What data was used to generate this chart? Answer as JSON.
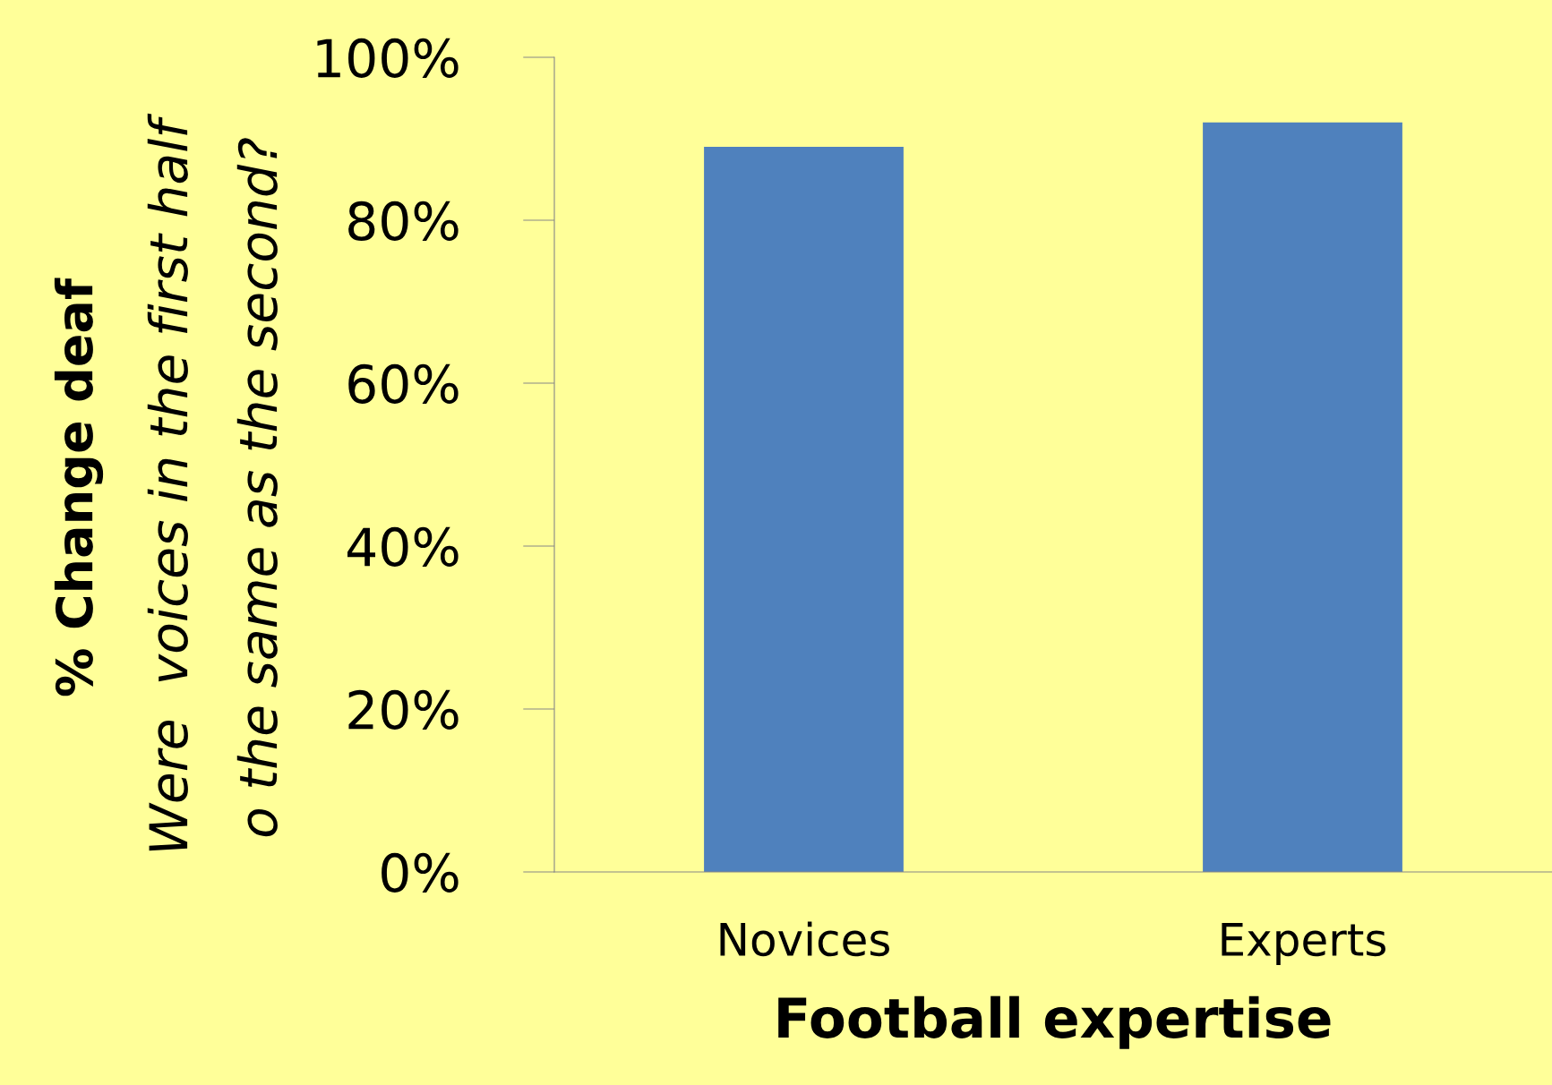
{
  "chart_data": {
    "type": "bar",
    "categories": [
      "Novices",
      "Experts"
    ],
    "values": [
      89,
      92
    ],
    "color": "#4f81bd",
    "ylabel": "% Change deaf\nWere  voices in the first half\no the same as the second?",
    "xlabel": "Football expertise",
    "ylim": [
      0,
      100
    ],
    "yticks": [
      {
        "value": 0,
        "label": "0%"
      },
      {
        "value": 20,
        "label": "20%"
      },
      {
        "value": 40,
        "label": "40%"
      },
      {
        "value": 60,
        "label": "60%"
      },
      {
        "value": 80,
        "label": "80%"
      },
      {
        "value": 100,
        "label": "100%"
      }
    ],
    "grid": false,
    "legend": false
  }
}
